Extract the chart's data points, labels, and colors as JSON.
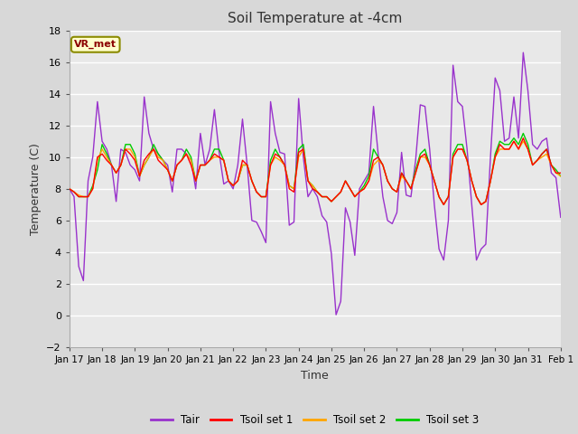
{
  "title": "Soil Temperature at -4cm",
  "xlabel": "Time",
  "ylabel": "Temperature (C)",
  "ylim": [
    -2,
    18
  ],
  "yticks": [
    -2,
    0,
    2,
    4,
    6,
    8,
    10,
    12,
    14,
    16,
    18
  ],
  "xtick_labels": [
    "Jan 17",
    "Jan 18",
    "Jan 19",
    "Jan 20",
    "Jan 21",
    "Jan 22",
    "Jan 23",
    "Jan 24",
    "Jan 25",
    "Jan 26",
    "Jan 27",
    "Jan 28",
    "Jan 29",
    "Jan 30",
    "Jan 31",
    "Feb 1"
  ],
  "annotation_text": "VR_met",
  "annotation_bg": "#ffffcc",
  "annotation_border": "#8B8B00",
  "annotation_text_color": "#8B0000",
  "fig_bg_color": "#d8d8d8",
  "plot_bg_color": "#e8e8e8",
  "grid_color": "#ffffff",
  "tair_color": "#9932CC",
  "tsoil1_color": "#FF0000",
  "tsoil2_color": "#FFA500",
  "tsoil3_color": "#00CC00",
  "line_width": 1.0,
  "tair_data": [
    8.0,
    7.5,
    3.1,
    2.2,
    8.5,
    10.0,
    13.5,
    11.0,
    10.5,
    9.5,
    7.2,
    10.5,
    10.3,
    9.5,
    9.2,
    8.5,
    13.8,
    11.5,
    10.5,
    10.2,
    9.8,
    9.5,
    7.8,
    10.5,
    10.5,
    10.2,
    9.8,
    8.0,
    11.5,
    9.5,
    10.5,
    13.0,
    10.3,
    8.3,
    8.5,
    8.0,
    9.5,
    12.4,
    9.5,
    6.0,
    5.9,
    5.3,
    4.6,
    13.5,
    11.5,
    10.3,
    10.2,
    5.7,
    5.9,
    13.7,
    10.0,
    7.5,
    8.0,
    7.5,
    6.3,
    5.9,
    3.9,
    0.05,
    0.9,
    6.8,
    5.9,
    3.8,
    8.0,
    8.5,
    9.0,
    13.2,
    10.2,
    7.5,
    6.0,
    5.8,
    6.5,
    10.3,
    7.6,
    7.5,
    9.8,
    13.3,
    13.2,
    10.5,
    7.0,
    4.2,
    3.5,
    6.0,
    15.8,
    13.5,
    13.2,
    10.5,
    7.0,
    3.5,
    4.2,
    4.5,
    10.0,
    15.0,
    14.2,
    11.0,
    11.2,
    13.8,
    11.2,
    16.6,
    14.2,
    10.8,
    10.5,
    11.0,
    11.2,
    9.0,
    8.7,
    6.2
  ],
  "tsoil1_data": [
    8.0,
    7.8,
    7.5,
    7.5,
    7.5,
    8.0,
    10.0,
    10.2,
    9.8,
    9.5,
    9.0,
    9.5,
    10.5,
    10.2,
    9.8,
    8.8,
    9.8,
    10.2,
    10.5,
    9.8,
    9.5,
    9.2,
    8.5,
    9.5,
    9.8,
    10.2,
    9.5,
    8.5,
    9.5,
    9.5,
    9.8,
    10.2,
    10.0,
    9.8,
    8.5,
    8.2,
    8.5,
    9.8,
    9.5,
    8.5,
    7.8,
    7.5,
    7.5,
    9.5,
    10.2,
    10.0,
    9.5,
    8.0,
    7.8,
    10.3,
    10.5,
    8.5,
    8.0,
    7.8,
    7.5,
    7.5,
    7.2,
    7.5,
    7.8,
    8.5,
    8.0,
    7.5,
    7.8,
    8.0,
    8.5,
    9.8,
    10.0,
    9.5,
    8.5,
    8.0,
    7.8,
    9.0,
    8.5,
    8.0,
    9.0,
    10.0,
    10.2,
    9.5,
    8.5,
    7.5,
    7.0,
    7.5,
    10.0,
    10.5,
    10.5,
    9.8,
    8.5,
    7.5,
    7.0,
    7.2,
    8.5,
    10.0,
    10.8,
    10.5,
    10.5,
    11.0,
    10.5,
    11.2,
    10.5,
    9.5,
    9.8,
    10.2,
    10.5,
    9.5,
    9.0,
    9.0
  ],
  "tsoil2_data": [
    8.0,
    7.8,
    7.6,
    7.5,
    7.5,
    8.0,
    9.8,
    10.5,
    10.0,
    9.5,
    9.0,
    9.5,
    10.5,
    10.5,
    10.0,
    8.8,
    9.5,
    10.0,
    10.5,
    10.0,
    9.8,
    9.2,
    8.5,
    9.5,
    9.8,
    10.2,
    9.8,
    8.5,
    9.5,
    9.5,
    9.8,
    10.0,
    10.0,
    9.8,
    8.5,
    8.2,
    8.5,
    9.5,
    9.5,
    8.5,
    7.8,
    7.5,
    7.5,
    9.5,
    10.0,
    9.8,
    9.5,
    8.2,
    8.0,
    10.0,
    10.5,
    8.5,
    8.2,
    7.8,
    7.5,
    7.5,
    7.2,
    7.5,
    7.8,
    8.5,
    8.0,
    7.5,
    7.8,
    8.0,
    8.5,
    9.5,
    9.8,
    9.5,
    8.5,
    8.0,
    7.8,
    8.8,
    8.5,
    8.0,
    9.0,
    10.0,
    10.0,
    9.5,
    8.5,
    7.5,
    7.0,
    7.5,
    10.0,
    10.5,
    10.5,
    9.8,
    8.5,
    7.5,
    7.0,
    7.2,
    8.5,
    10.0,
    10.5,
    10.5,
    10.5,
    11.0,
    10.5,
    11.0,
    10.5,
    9.5,
    9.8,
    10.0,
    10.2,
    9.5,
    9.0,
    8.8
  ],
  "tsoil3_data": [
    8.0,
    7.8,
    7.5,
    7.5,
    7.5,
    8.2,
    9.2,
    10.8,
    10.2,
    9.5,
    9.0,
    9.5,
    10.8,
    10.8,
    10.2,
    8.8,
    9.5,
    10.0,
    10.8,
    10.2,
    9.8,
    9.2,
    8.5,
    9.5,
    9.8,
    10.5,
    10.0,
    8.5,
    9.5,
    9.5,
    9.8,
    10.5,
    10.5,
    9.8,
    8.5,
    8.2,
    8.5,
    9.5,
    9.5,
    8.5,
    7.8,
    7.5,
    7.5,
    9.8,
    10.5,
    10.0,
    9.5,
    8.2,
    8.0,
    10.5,
    10.8,
    8.5,
    8.2,
    7.8,
    7.5,
    7.5,
    7.2,
    7.5,
    7.8,
    8.5,
    8.0,
    7.5,
    7.8,
    8.2,
    8.8,
    10.5,
    10.0,
    9.5,
    8.5,
    8.0,
    7.8,
    9.0,
    8.5,
    8.0,
    9.2,
    10.2,
    10.5,
    9.5,
    8.5,
    7.5,
    7.0,
    7.5,
    10.2,
    10.8,
    10.8,
    9.8,
    8.5,
    7.5,
    7.0,
    7.2,
    8.5,
    10.2,
    11.0,
    10.8,
    10.8,
    11.2,
    10.8,
    11.5,
    10.8,
    9.5,
    9.8,
    10.2,
    10.5,
    9.5,
    9.2,
    8.8
  ]
}
